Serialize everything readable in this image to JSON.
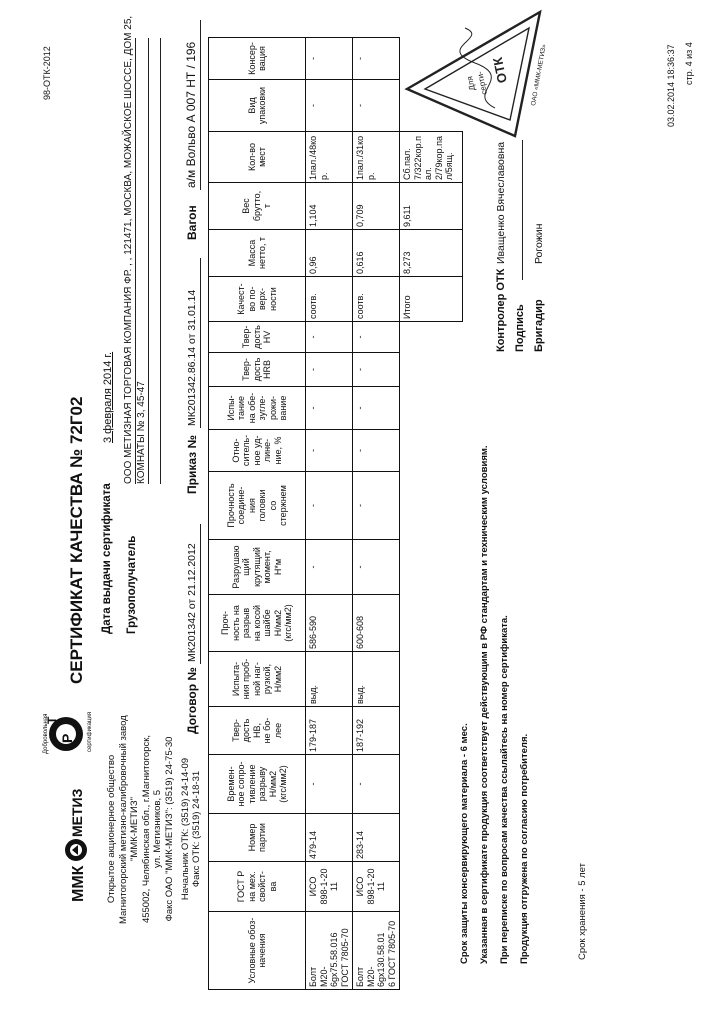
{
  "form_code": "98-ОТК-2012",
  "logos": {
    "company_logo": "ММК МЕТИЗ",
    "cert_logo": "РСТ Добровольная сертификация"
  },
  "company": {
    "lines": [
      "Открытое акционерное общество",
      "Магнитогорский метизно-калибровочный завод",
      "\"ММК-МЕТИЗ\"",
      "455002, Челябинская обл., г.Магнитогорск,",
      "ул. Метизников, 5",
      "Факс ОАО \"ММК-МЕТИЗ\": (3519) 24-75-30",
      "Начальник ОТК: (3519) 24-14-09",
      "Факс ОТК: (3519) 24-18-31"
    ]
  },
  "title": "СЕРТИФИКАТ КАЧЕСТВА № 72Г02",
  "issue_date": {
    "label": "Дата выдачи сертификата",
    "value": "3 февраля 2014 г."
  },
  "consignee": {
    "label": "Грузополучатель",
    "line1": "ООО МЕТИЗНАЯ ТОРГОВАЯ КОМПАНИЯ ФР. , , 121471, МОСКВА, МОЖАЙСКОЕ ШОССЕ, ДОМ 25,",
    "line2": "КОМНАТЫ № 3, 45-47"
  },
  "refs": {
    "contract_label": "Договор №",
    "contract_value": "МК201342 от 21.12.2012",
    "order_label": "Приказ №",
    "order_value": "МК201342.86.14 от 31.01.14",
    "wagon_label": "Вагон",
    "wagon_value": "а/м Вольво А 007 НТ / 196"
  },
  "table": {
    "headers": [
      "Условные обоз-\nначения",
      "ГОСТ Р\nна мех.\nсвойст-\nва",
      "Номер\nпартии",
      "Времен-\nное сопро-\nтивление\nразрыву\nН/мм2\n(кгс/мм2)",
      "Твер-\nдость\nНВ,\nне бо-\nлее",
      "Испыта-\nния проб-\nной наг-\nрузкой,\nН/мм2",
      "Проч-\nность на\nразрыв\nна косой\nшайбе\nН/мм2\n(кгс/мм2)",
      "Разрушаю\nщий\nкрутящий\nмомент,\nН*м",
      "Прочность\nсоедине-\nния\nголовки\nсо\nстержнем",
      "Отно-\nситель-\nное уд-\nлине-\nние, %",
      "Испы-\nтание\nна обе-\nзугле-\nрожи-\nвание",
      "Твер-\nдость\nHRB",
      "Твер-\nдость\nHV",
      "Качест-\nво по-\nверх-\nности",
      "Масса\nнетто, т",
      "Вес\nбрутто,\nт",
      "Кол-во\nмест",
      "Вид\nупаковки",
      "Консер-\nвация"
    ],
    "rows": [
      [
        "Болт\nМ20-6gх75.58.016\nГОСТ 7805-70",
        "ИСО\n898-1-20\n11",
        "479-14",
        "-",
        "179-187",
        "выд.",
        "586-590",
        "-",
        "-",
        "-",
        "-",
        "-",
        "-",
        "соотв.",
        "0,96",
        "1,104",
        "1пал./48ко\nр.",
        "-",
        "-"
      ],
      [
        "Болт\nМ20-6gх130.58.01\n6 ГОСТ 7805-70",
        "ИСО\n898-1-20\n11",
        "283-14",
        "-",
        "187-192",
        "выд.",
        "600-608",
        "-",
        "-",
        "-",
        "-",
        "-",
        "-",
        "соотв.",
        "0,616",
        "0,709",
        "1пал./31ко\nр.",
        "-",
        "-"
      ]
    ],
    "total": {
      "label": "Итого",
      "net": "8,273",
      "gross": "9,611",
      "places": "Сб.пал.\n7/322кор.п\nал.\n2/79кор.па\nл/5ящ."
    }
  },
  "notes": [
    "Срок защиты консервирующего материала -  6 мес.",
    "Указанная в сертификате продукция соответствует действующим в РФ стандартам и техническим условиям.",
    "При переписке по вопросам качества ссылайтесь на номер сертификата.",
    "Продукция отгружена по согласию потребителя."
  ],
  "storage_note": "Срок хранения - 5 лет",
  "signatures": {
    "controller_label": "Контролер ОТК",
    "controller_name": "Иващенко Вячеславовна",
    "signature_label": "Подпись",
    "foreman_label": "Бригадир",
    "foreman_name": "Рогожин"
  },
  "stamp": {
    "text_outer": "Магнитогорский метизно-калибровочный завод",
    "text_inner": "Для сертификатов",
    "text_mark": "ОТК",
    "text_bottom": "ОАО «ММК-МЕТИЗ»",
    "color": "#222222"
  },
  "printed": {
    "datetime": "03.02.2014 18:36:37",
    "page": "стр. 4 из 4"
  }
}
